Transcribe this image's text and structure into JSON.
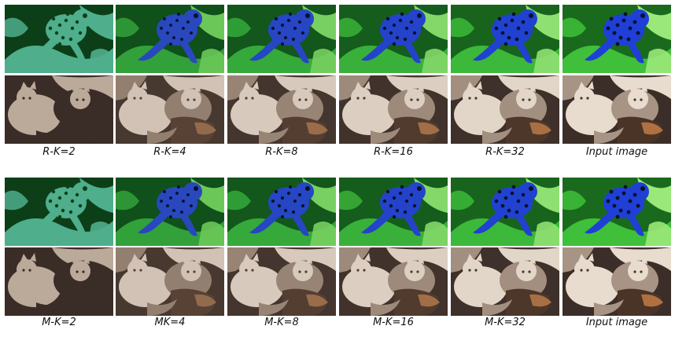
{
  "block_top": {
    "captions": [
      "R-K=2",
      "R-K=4",
      "R-K=8",
      "R-K=16",
      "R-K=32",
      "Input image"
    ]
  },
  "block_bottom": {
    "captions": [
      "M-K=2",
      "MK=4",
      "M-K=8",
      "M-K=16",
      "M-K=32",
      "Input image"
    ]
  },
  "colors": {
    "frog_bg_dark": "#0c3f18",
    "frog_leaf": "#3fbf3a",
    "frog_leaf_light": "#9be87a",
    "frog_body": "#1f3fd6",
    "frog_spots": "#06102a",
    "frog_k2_light": "#4fae8c",
    "cat_bg_dark": "#3a2c26",
    "cat_fur_light": "#e8dccf",
    "cat_fur_mid": "#a89484",
    "cat_k2_light": "#bba99a"
  }
}
